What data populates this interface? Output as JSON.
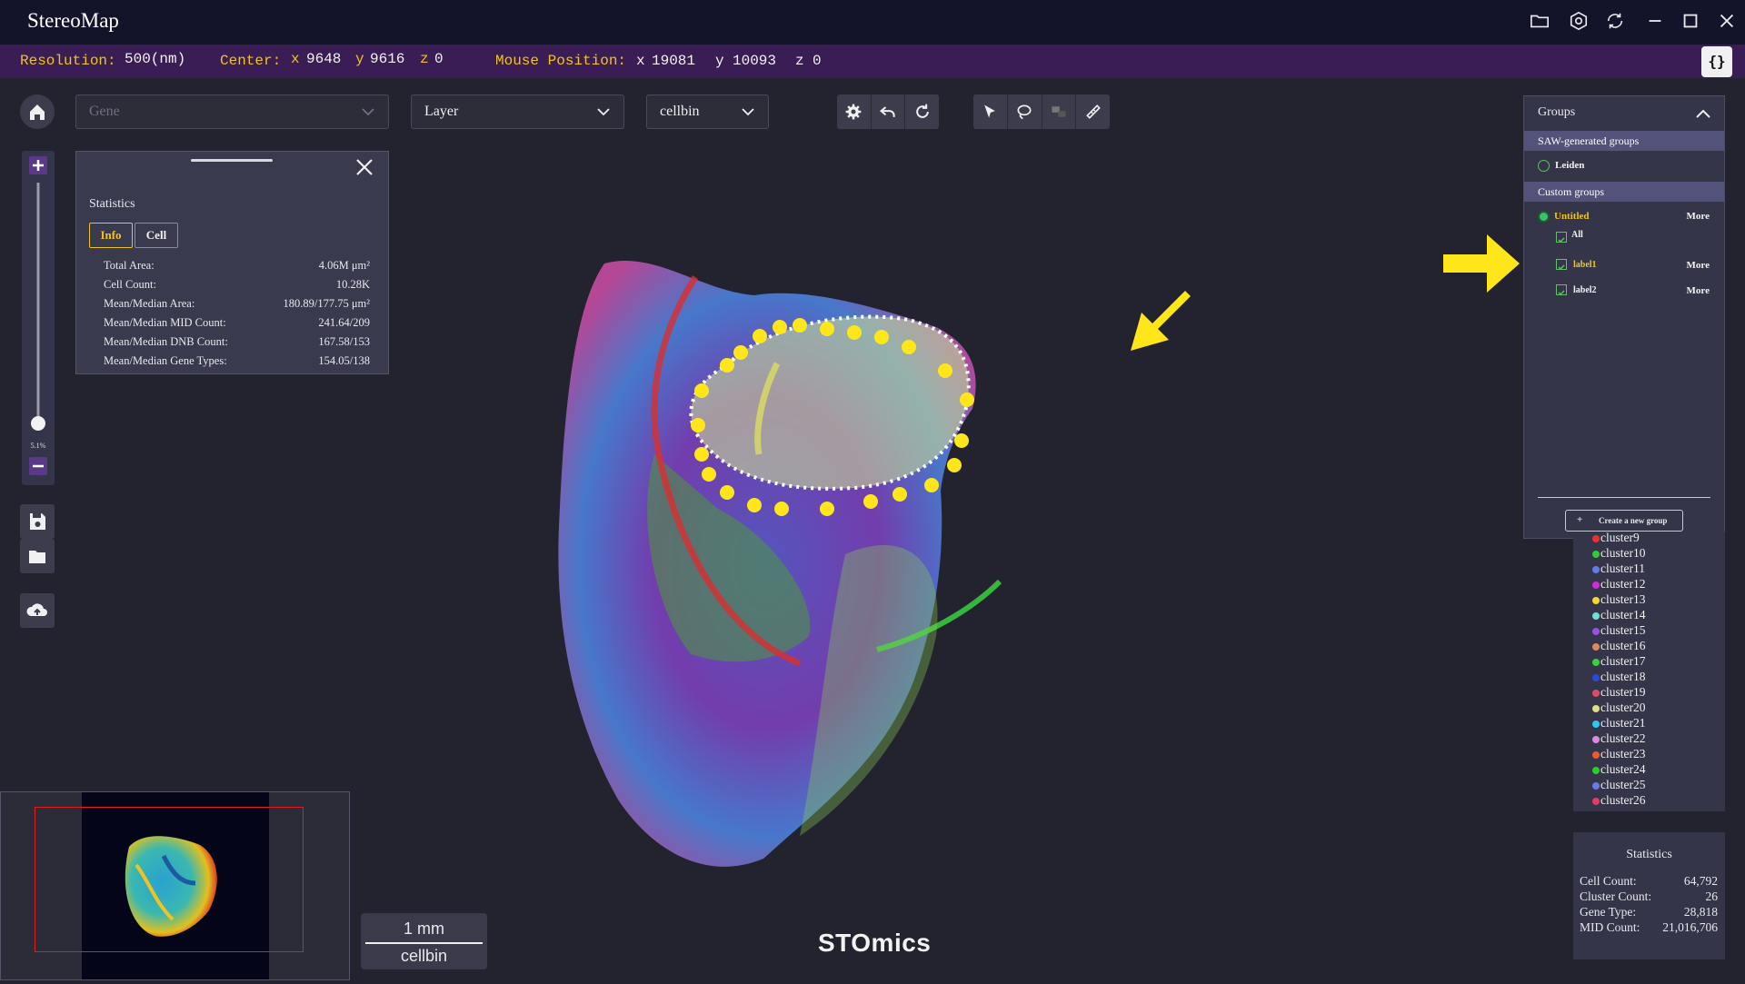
{
  "app": {
    "title": "StereoMap"
  },
  "status": {
    "resolution_label": "Resolution:",
    "resolution_value": "500(nm)",
    "center_label": "Center:",
    "center_x": "9648",
    "center_y": "9616",
    "center_z": "0",
    "mouse_label": "Mouse Position:",
    "mouse_x": "19081",
    "mouse_y": "10093",
    "mouse_z": "0",
    "code_button": "{}"
  },
  "toolbar": {
    "gene_placeholder": "Gene",
    "layer_value": "Layer",
    "cellbin_value": "cellbin"
  },
  "zoom": {
    "level": "5.1%"
  },
  "stats_popup": {
    "title": "Statistics",
    "tab_info": "Info",
    "tab_cell": "Cell",
    "rows": [
      {
        "label": "Total Area:",
        "value": "4.06M μm²"
      },
      {
        "label": "Cell Count:",
        "value": "10.28K"
      },
      {
        "label": "Mean/Median Area:",
        "value": "180.89/177.75 μm²"
      },
      {
        "label": "Mean/Median MID Count:",
        "value": "241.64/209"
      },
      {
        "label": "Mean/Median DNB Count:",
        "value": "167.58/153"
      },
      {
        "label": "Mean/Median Gene Types:",
        "value": "154.05/138"
      }
    ]
  },
  "groups": {
    "title": "Groups",
    "saw_section": "SAW-generated groups",
    "saw_item": "Leiden",
    "custom_section": "Custom groups",
    "custom_group": "Untitled",
    "more": "More",
    "all": "All",
    "label1": "label1",
    "label2": "label2",
    "create_button": "Create a new group",
    "create_plus": "+"
  },
  "legend": {
    "clusters": [
      {
        "name": "cluster9",
        "color": "#e8322c"
      },
      {
        "name": "cluster10",
        "color": "#36c936"
      },
      {
        "name": "cluster11",
        "color": "#5f7fe0"
      },
      {
        "name": "cluster12",
        "color": "#d12cd8"
      },
      {
        "name": "cluster13",
        "color": "#f0d830"
      },
      {
        "name": "cluster14",
        "color": "#6ee0d8"
      },
      {
        "name": "cluster15",
        "color": "#9b4fe8"
      },
      {
        "name": "cluster16",
        "color": "#e0885a"
      },
      {
        "name": "cluster17",
        "color": "#3ad23a"
      },
      {
        "name": "cluster18",
        "color": "#2848e0"
      },
      {
        "name": "cluster19",
        "color": "#e04a6a"
      },
      {
        "name": "cluster20",
        "color": "#d8e08a"
      },
      {
        "name": "cluster21",
        "color": "#2cc8f0"
      },
      {
        "name": "cluster22",
        "color": "#d88ae0"
      },
      {
        "name": "cluster23",
        "color": "#f05a2a"
      },
      {
        "name": "cluster24",
        "color": "#28d028"
      },
      {
        "name": "cluster25",
        "color": "#6a7ae8"
      },
      {
        "name": "cluster26",
        "color": "#e83a6a"
      }
    ]
  },
  "stats_panel": {
    "title": "Statistics",
    "rows": [
      {
        "label": "Cell Count:",
        "value": "64,792"
      },
      {
        "label": "Cluster Count:",
        "value": "26"
      },
      {
        "label": "Gene Type:",
        "value": "28,818"
      },
      {
        "label": "MID Count:",
        "value": "21,016,706"
      }
    ]
  },
  "scale": {
    "distance": "1 mm",
    "layer": "cellbin"
  },
  "brand": "STOmics",
  "colors": {
    "accent_yellow": "#ffe61a",
    "status_bg": "#3a1d55",
    "titlebar_bg": "#13132a"
  }
}
